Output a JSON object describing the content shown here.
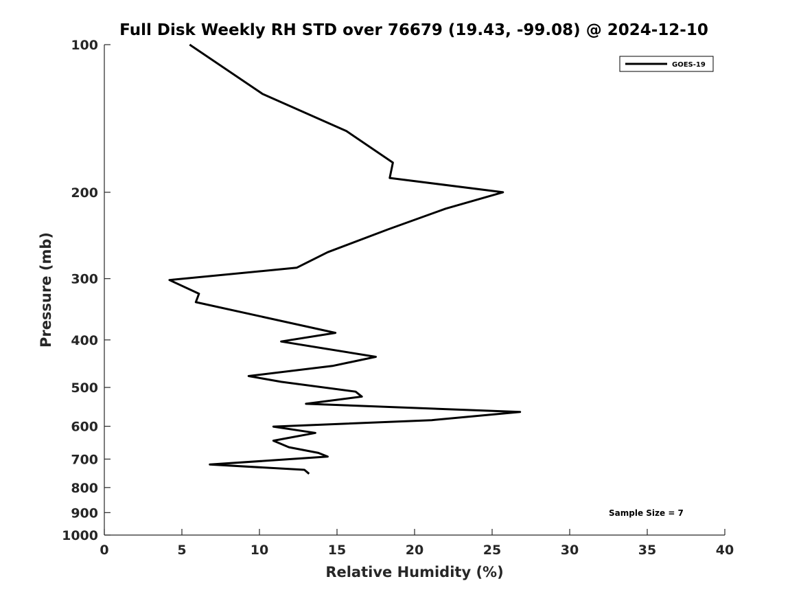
{
  "chart_data": {
    "type": "line",
    "title": "Full Disk Weekly RH STD over 76679 (19.43, -99.08) @ 2024-12-10",
    "xlabel": "Relative Humidity (%)",
    "ylabel": "Pressure (mb)",
    "xlim": [
      0,
      40
    ],
    "ylim": [
      100,
      1000
    ],
    "yscale": "log",
    "y_reversed": true,
    "x_ticks": [
      0,
      5,
      10,
      15,
      20,
      25,
      30,
      35,
      40
    ],
    "y_ticks": [
      100,
      200,
      300,
      400,
      500,
      600,
      700,
      800,
      900,
      1000
    ],
    "grid": false,
    "legend_position": "top-right",
    "annotation": "Sample Size = 7",
    "series": [
      {
        "name": "GOES-19",
        "color": "#000000",
        "x": [
          5.5,
          10.2,
          15.6,
          18.6,
          18.4,
          25.7,
          22.0,
          18.3,
          14.4,
          12.4,
          4.2,
          6.1,
          5.9,
          14.9,
          11.4,
          17.5,
          14.7,
          9.3,
          11.4,
          16.2,
          16.6,
          13.0,
          26.8,
          21.1,
          10.9,
          13.6,
          10.9,
          11.9,
          13.8,
          14.4,
          6.8,
          12.9,
          13.2
        ],
        "y": [
          100,
          126,
          150,
          174,
          187,
          200,
          216,
          238,
          265,
          285,
          302,
          322,
          335,
          387,
          403,
          433,
          452,
          474,
          487,
          510,
          522,
          540,
          561,
          583,
          601,
          619,
          642,
          662,
          680,
          692,
          718,
          736,
          750
        ]
      }
    ]
  }
}
